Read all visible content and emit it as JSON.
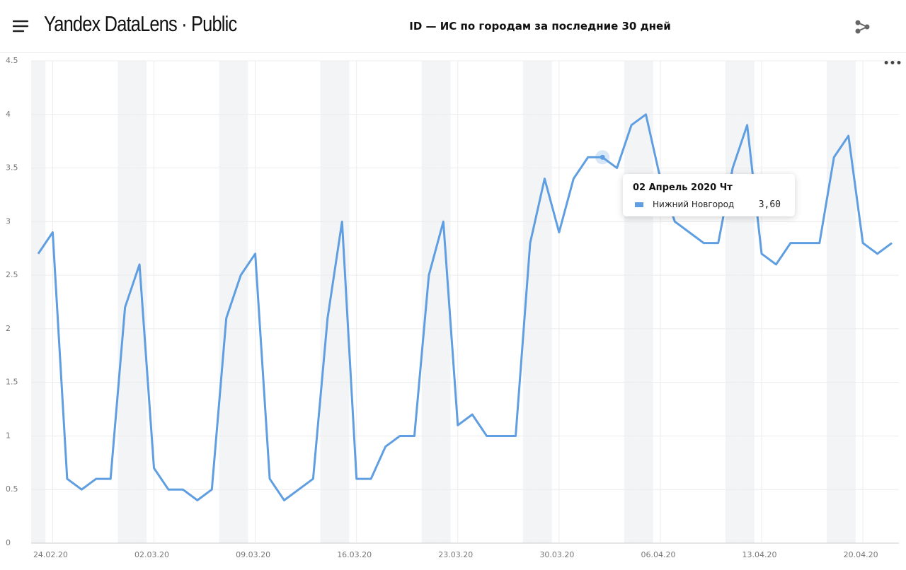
{
  "header": {
    "logo": "Yandex DataLens · Public",
    "title": "ID — ИС по городам за последние 30 дней"
  },
  "chart_data": {
    "type": "line",
    "x": [
      "23.02.20",
      "24.02.20",
      "25.02.20",
      "26.02.20",
      "27.02.20",
      "28.02.20",
      "29.02.20",
      "01.03.20",
      "02.03.20",
      "03.03.20",
      "04.03.20",
      "05.03.20",
      "06.03.20",
      "07.03.20",
      "08.03.20",
      "09.03.20",
      "10.03.20",
      "11.03.20",
      "12.03.20",
      "13.03.20",
      "14.03.20",
      "15.03.20",
      "16.03.20",
      "17.03.20",
      "18.03.20",
      "19.03.20",
      "20.03.20",
      "21.03.20",
      "22.03.20",
      "23.03.20",
      "24.03.20",
      "25.03.20",
      "26.03.20",
      "27.03.20",
      "28.03.20",
      "29.03.20",
      "30.03.20",
      "31.03.20",
      "01.04.20",
      "02.04.20",
      "03.04.20",
      "04.04.20",
      "05.04.20",
      "06.04.20",
      "07.04.20",
      "08.04.20",
      "09.04.20",
      "10.04.20",
      "11.04.20",
      "12.04.20",
      "13.04.20",
      "14.04.20",
      "15.04.20",
      "16.04.20",
      "17.04.20",
      "18.04.20",
      "19.04.20",
      "20.04.20",
      "21.04.20",
      "22.04.20"
    ],
    "series": [
      {
        "name": "Нижний Новгород",
        "color": "#5f9ee0",
        "values": [
          2.7,
          2.9,
          0.6,
          0.5,
          0.6,
          0.6,
          2.2,
          2.6,
          0.7,
          0.5,
          0.5,
          0.4,
          0.5,
          2.1,
          2.5,
          2.7,
          0.6,
          0.4,
          0.5,
          0.6,
          2.1,
          3.0,
          0.6,
          0.6,
          0.9,
          1.0,
          1.0,
          2.5,
          3.0,
          1.1,
          1.2,
          1.0,
          1.0,
          1.0,
          2.8,
          3.4,
          2.9,
          3.4,
          3.6,
          3.6,
          3.5,
          3.9,
          4.0,
          3.4,
          3.0,
          2.9,
          2.8,
          2.8,
          3.5,
          3.9,
          2.7,
          2.6,
          2.8,
          2.8,
          2.8,
          3.6,
          3.8,
          2.8,
          2.7,
          2.8
        ]
      }
    ],
    "xticks": [
      "24.02.20",
      "02.03.20",
      "09.03.20",
      "16.03.20",
      "23.03.20",
      "30.03.20",
      "06.04.20",
      "13.04.20",
      "20.04.20"
    ],
    "ylim": [
      0,
      4.5
    ],
    "yticks": [
      0,
      0.5,
      1,
      1.5,
      2,
      2.5,
      3,
      3.5,
      4,
      4.5
    ],
    "grid": true,
    "tooltip": {
      "title": "02 Апрель 2020 Чт",
      "value_label": "3,60"
    }
  }
}
